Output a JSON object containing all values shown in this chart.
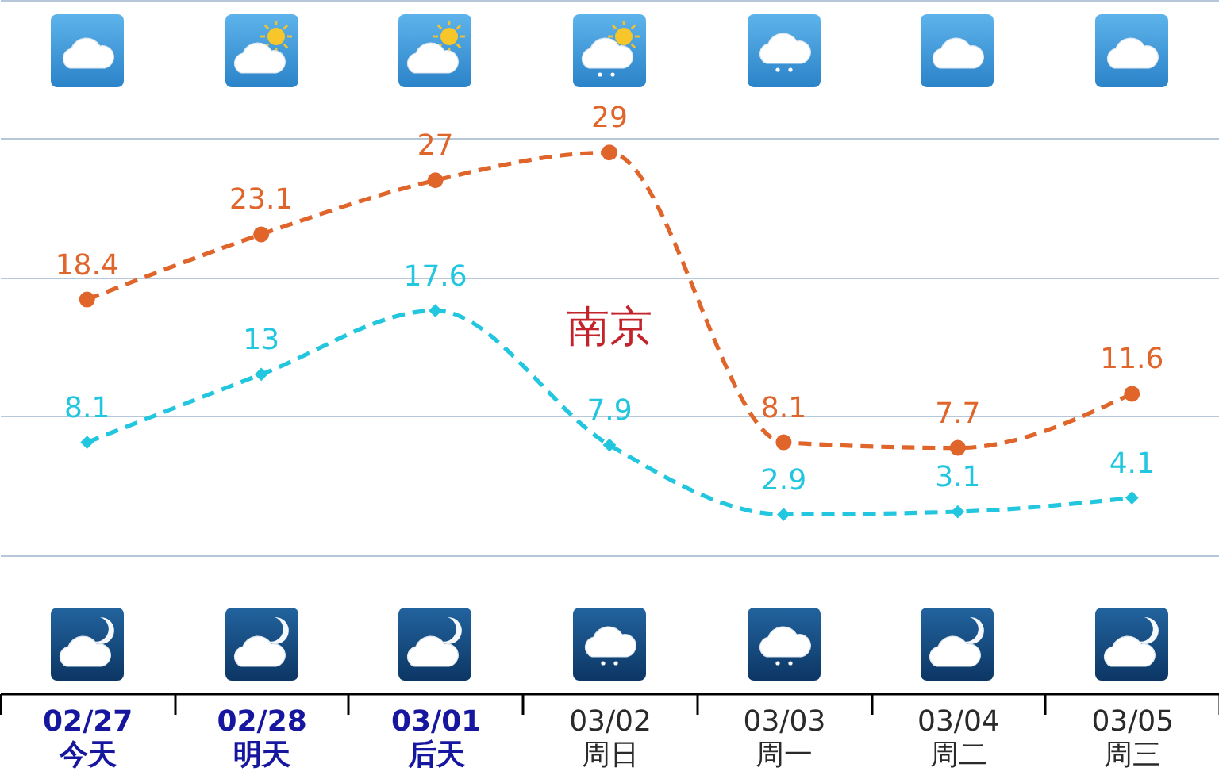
{
  "chart_data": {
    "type": "line",
    "categories": [
      "02/27\n今天",
      "02/28\n明天",
      "03/01\n后天",
      "03/02\n周日",
      "03/03\n周一",
      "03/04\n周二",
      "03/05\n周三"
    ],
    "series": [
      {
        "color": "#e0652b",
        "marker": "circle",
        "values": [
          18.4,
          23.1,
          27,
          29,
          8.1,
          7.7,
          11.6
        ]
      },
      {
        "color": "#22c7df",
        "marker": "diamond",
        "values": [
          8.1,
          13,
          17.6,
          7.9,
          2.9,
          3.1,
          4.1
        ]
      }
    ],
    "ylim": [
      -10,
      40
    ],
    "yticks": [
      {
        "value": 0,
        "label": null
      },
      {
        "value": 10,
        "label": null
      },
      {
        "value": 20,
        "label": null
      },
      {
        "value": 30,
        "label": null
      },
      {
        "value": 40,
        "label": null
      }
    ],
    "grid": "y",
    "tick_labels": "x",
    "data_labels": true,
    "line_style": "dashed",
    "annotations": [
      "南京"
    ]
  }
}
